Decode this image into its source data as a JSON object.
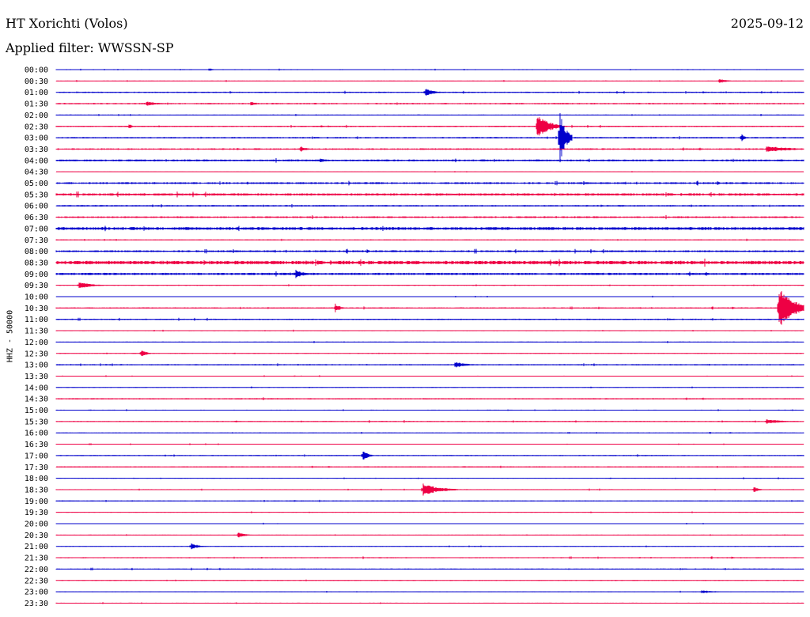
{
  "header": {
    "station": "HT Xorichti (Volos)",
    "date": "2025-09-12",
    "filter": "Applied filter: WWSSN-SP"
  },
  "axis": {
    "ylabel": "HHZ - 50000"
  },
  "colors": {
    "blue": "#0000cc",
    "red": "#ee0044"
  },
  "chart_data": {
    "type": "seismogram-helicorder",
    "station": "HT Xorichti (Volos)",
    "channel": "HHZ",
    "scale": 50000,
    "date": "2025-09-12",
    "filter": "WWSSN-SP",
    "line_minutes": 30,
    "row_labels": [
      "00:00",
      "00:30",
      "01:00",
      "01:30",
      "02:00",
      "02:30",
      "03:00",
      "03:30",
      "04:00",
      "04:30",
      "05:00",
      "05:30",
      "06:00",
      "06:30",
      "07:00",
      "07:30",
      "08:00",
      "08:30",
      "09:00",
      "09:30",
      "10:00",
      "10:30",
      "11:00",
      "11:30",
      "12:00",
      "12:30",
      "13:00",
      "13:30",
      "14:00",
      "14:30",
      "15:00",
      "15:30",
      "16:00",
      "16:30",
      "17:00",
      "17:30",
      "18:00",
      "18:30",
      "19:00",
      "19:30",
      "20:00",
      "20:30",
      "21:00",
      "21:30",
      "22:00",
      "22:30",
      "23:00",
      "23:30"
    ],
    "noise_level": [
      0.6,
      0.5,
      0.8,
      0.9,
      0.6,
      0.8,
      0.9,
      1.0,
      1.2,
      0.4,
      1.2,
      1.5,
      1.0,
      1.1,
      1.8,
      0.6,
      1.2,
      2.2,
      1.4,
      0.6,
      0.5,
      0.8,
      0.8,
      0.6,
      0.6,
      0.5,
      0.8,
      0.5,
      0.5,
      0.8,
      0.6,
      0.7,
      0.5,
      0.5,
      0.7,
      0.7,
      0.5,
      0.6,
      0.6,
      0.5,
      0.5,
      0.5,
      0.5,
      0.7,
      0.7,
      0.5,
      0.5,
      0.6
    ],
    "events": [
      {
        "row": 0,
        "minute": 6.1,
        "amplitude": 2,
        "duration_min": 0.5
      },
      {
        "row": 1,
        "minute": 26.6,
        "amplitude": 3,
        "duration_min": 0.7
      },
      {
        "row": 2,
        "minute": 14.8,
        "amplitude": 5,
        "duration_min": 0.8
      },
      {
        "row": 3,
        "minute": 3.6,
        "amplitude": 3,
        "duration_min": 1.0
      },
      {
        "row": 3,
        "minute": 7.8,
        "amplitude": 3,
        "duration_min": 0.6
      },
      {
        "row": 5,
        "minute": 19.3,
        "amplitude": 16,
        "duration_min": 1.0
      },
      {
        "row": 5,
        "minute": 2.9,
        "amplitude": 4,
        "duration_min": 0.3
      },
      {
        "row": 6,
        "minute": 20.2,
        "amplitude": 36,
        "duration_min": 0.5
      },
      {
        "row": 6,
        "minute": 27.5,
        "amplitude": 8,
        "duration_min": 0.2
      },
      {
        "row": 7,
        "minute": 9.8,
        "amplitude": 4,
        "duration_min": 0.5
      },
      {
        "row": 7,
        "minute": 28.5,
        "amplitude": 4,
        "duration_min": 2.2
      },
      {
        "row": 8,
        "minute": 10.6,
        "amplitude": 3,
        "duration_min": 0.6
      },
      {
        "row": 17,
        "minute": 22.7,
        "amplitude": 5,
        "duration_min": 0.3
      },
      {
        "row": 18,
        "minute": 9.6,
        "amplitude": 6,
        "duration_min": 0.7
      },
      {
        "row": 19,
        "minute": 0.9,
        "amplitude": 5,
        "duration_min": 1.0
      },
      {
        "row": 21,
        "minute": 11.2,
        "amplitude": 6,
        "duration_min": 0.4
      },
      {
        "row": 21,
        "minute": 29.0,
        "amplitude": 26,
        "duration_min": 1.3
      },
      {
        "row": 25,
        "minute": 3.4,
        "amplitude": 6,
        "duration_min": 0.4
      },
      {
        "row": 26,
        "minute": 16.0,
        "amplitude": 4,
        "duration_min": 1.0
      },
      {
        "row": 31,
        "minute": 28.5,
        "amplitude": 3,
        "duration_min": 1.4
      },
      {
        "row": 34,
        "minute": 12.3,
        "amplitude": 8,
        "duration_min": 0.4
      },
      {
        "row": 37,
        "minute": 14.7,
        "amplitude": 8,
        "duration_min": 1.4
      },
      {
        "row": 37,
        "minute": 28.0,
        "amplitude": 4,
        "duration_min": 0.4
      },
      {
        "row": 41,
        "minute": 7.3,
        "amplitude": 4,
        "duration_min": 0.6
      },
      {
        "row": 42,
        "minute": 5.4,
        "amplitude": 5,
        "duration_min": 0.6
      },
      {
        "row": 46,
        "minute": 25.9,
        "amplitude": 2,
        "duration_min": 1.3
      }
    ]
  }
}
